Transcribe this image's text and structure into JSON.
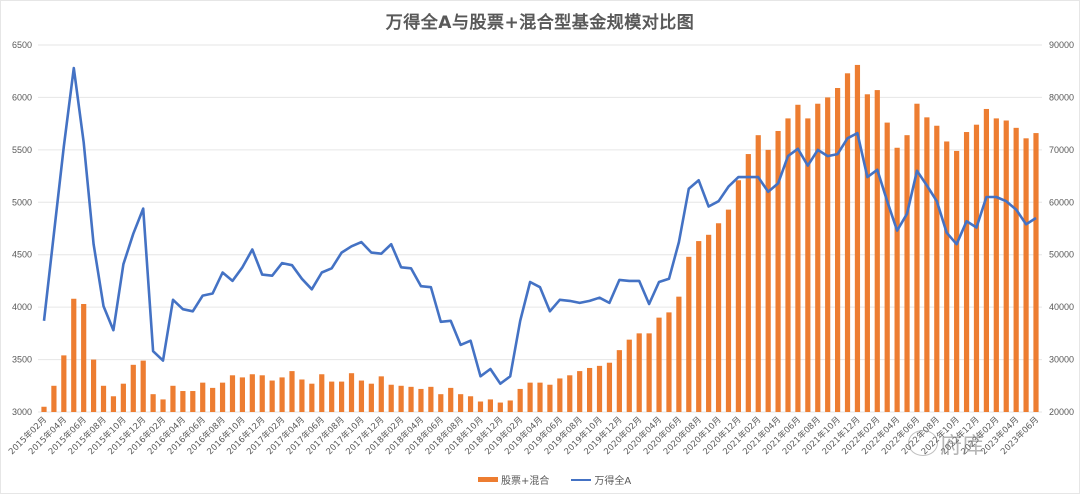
{
  "title": "万得全A与股票+混合型基金规模对比图",
  "legend": {
    "bar_label": "股票+混合",
    "line_label": "万得全A"
  },
  "watermark": "府库",
  "colors": {
    "bar": "#ED7D31",
    "line": "#4472C4",
    "grid": "#E6E6E6",
    "text": "#595959"
  },
  "chart_data": {
    "type": "bar+line",
    "title": "万得全A与股票+混合型基金规模对比图",
    "xlabel": "",
    "left_axis": {
      "series": "万得全A",
      "ylim": [
        3000,
        6500
      ],
      "ticks": [
        3000,
        3500,
        4000,
        4500,
        5000,
        5500,
        6000,
        6500
      ]
    },
    "right_axis": {
      "series": "股票+混合",
      "ylim": [
        20000,
        90000
      ],
      "ticks": [
        20000,
        30000,
        40000,
        50000,
        60000,
        70000,
        80000,
        90000
      ]
    },
    "grid": true,
    "legend_position": "bottom",
    "x_tick_labels": [
      "2015年02月",
      "2015年04月",
      "2015年06月",
      "2015年08月",
      "2015年10月",
      "2015年12月",
      "2016年02月",
      "2016年04月",
      "2016年06月",
      "2016年08月",
      "2016年10月",
      "2016年12月",
      "2017年02月",
      "2017年04月",
      "2017年06月",
      "2017年08月",
      "2017年10月",
      "2017年12月",
      "2018年02月",
      "2018年04月",
      "2018年06月",
      "2018年08月",
      "2018年10月",
      "2018年12月",
      "2019年02月",
      "2019年04月",
      "2019年06月",
      "2019年08月",
      "2019年10月",
      "2019年12月",
      "2020年02月",
      "2020年04月",
      "2020年06月",
      "2020年08月",
      "2020年10月",
      "2020年12月",
      "2021年02月",
      "2021年04月",
      "2021年06月",
      "2021年08月",
      "2021年10月",
      "2021年12月",
      "2022年02月",
      "2022年04月",
      "2022年06月",
      "2022年08月",
      "2022年10月",
      "2022年12月",
      "2023年02月",
      "2023年04月",
      "2023年06月"
    ],
    "start_month": "2015-02",
    "end_month": "2023-06",
    "series": [
      {
        "name": "股票+混合",
        "type": "bar",
        "axis": "right",
        "values": [
          21000,
          25000,
          30800,
          41600,
          40600,
          30000,
          25000,
          23000,
          25400,
          29000,
          29800,
          23400,
          22400,
          25000,
          24000,
          24000,
          25600,
          24600,
          25600,
          27000,
          26600,
          27200,
          27000,
          26000,
          26600,
          27800,
          26200,
          25400,
          27200,
          25800,
          25800,
          27400,
          26000,
          25400,
          26800,
          25200,
          25000,
          24800,
          24400,
          24800,
          23400,
          24600,
          23400,
          23000,
          22000,
          22400,
          21800,
          22200,
          24400,
          25600,
          25600,
          25200,
          26400,
          27000,
          27800,
          28400,
          28800,
          29400,
          31800,
          33800,
          35000,
          35000,
          38000,
          39000,
          42000,
          49600,
          52600,
          53800,
          56000,
          58600,
          64200,
          69200,
          72800,
          70000,
          73600,
          76000,
          78600,
          76000,
          78800,
          80000,
          81800,
          84600,
          86200,
          80600,
          81400,
          75200,
          70400,
          72800,
          78800,
          76200,
          74600,
          71600,
          69800,
          73400,
          74800,
          77800,
          76000,
          75600,
          74200,
          72200,
          73200
        ]
      },
      {
        "name": "万得全A",
        "type": "line",
        "axis": "left",
        "values": [
          3870,
          4700,
          5530,
          6280,
          5570,
          4600,
          4010,
          3780,
          4410,
          4700,
          4940,
          3580,
          3490,
          4070,
          3980,
          3960,
          4110,
          4130,
          4330,
          4250,
          4380,
          4550,
          4310,
          4300,
          4420,
          4400,
          4270,
          4170,
          4330,
          4370,
          4520,
          4580,
          4620,
          4520,
          4510,
          4600,
          4380,
          4370,
          4200,
          4190,
          3860,
          3870,
          3640,
          3680,
          3340,
          3410,
          3270,
          3340,
          3870,
          4240,
          4190,
          3960,
          4070,
          4060,
          4040,
          4060,
          4090,
          4040,
          4260,
          4250,
          4250,
          4030,
          4240,
          4270,
          4620,
          5130,
          5210,
          4960,
          5010,
          5150,
          5240,
          5240,
          5240,
          5100,
          5180,
          5440,
          5510,
          5350,
          5500,
          5440,
          5460,
          5610,
          5660,
          5240,
          5310,
          5010,
          4730,
          4890,
          5300,
          5160,
          5010,
          4710,
          4600,
          4820,
          4760,
          5050,
          5050,
          5010,
          4930,
          4790,
          4850
        ]
      }
    ]
  }
}
